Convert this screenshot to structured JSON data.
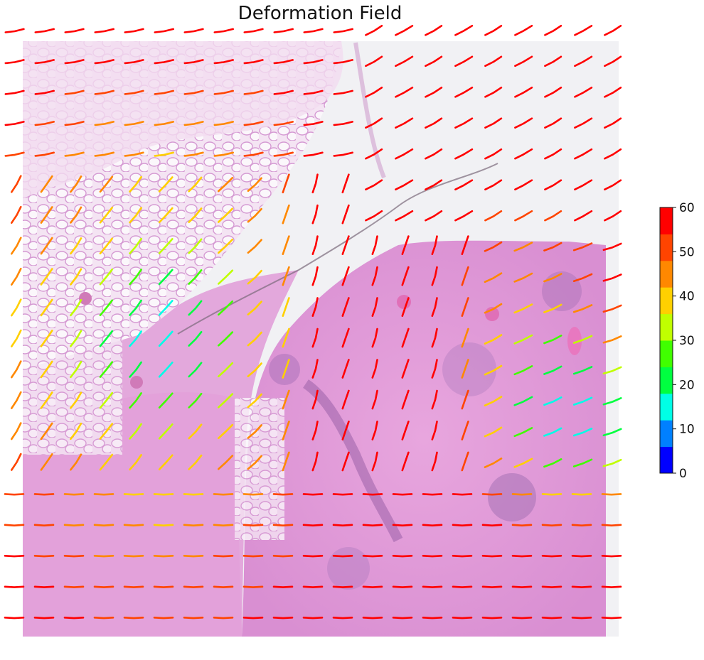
{
  "chart_data": {
    "type": "vector-field",
    "title": "Deformation Field",
    "background": "H&E tissue section",
    "colorbar": {
      "min": 0,
      "max": 60,
      "ticks": [
        "0",
        "10",
        "20",
        "30",
        "40",
        "50",
        "60"
      ],
      "bands": [
        "#0000ff",
        "#0080ff",
        "#00ffe6",
        "#00ff40",
        "#40ff00",
        "#c0ff00",
        "#ffd000",
        "#ff8800",
        "#ff4400",
        "#ff0000"
      ]
    },
    "grid": {
      "cols": 20,
      "rows": 20
    },
    "field_description": "Magnitude high (~55-60) in right half and top; low (~10-20) in left-centre region and lower-right edge.",
    "legend_position": "right"
  }
}
